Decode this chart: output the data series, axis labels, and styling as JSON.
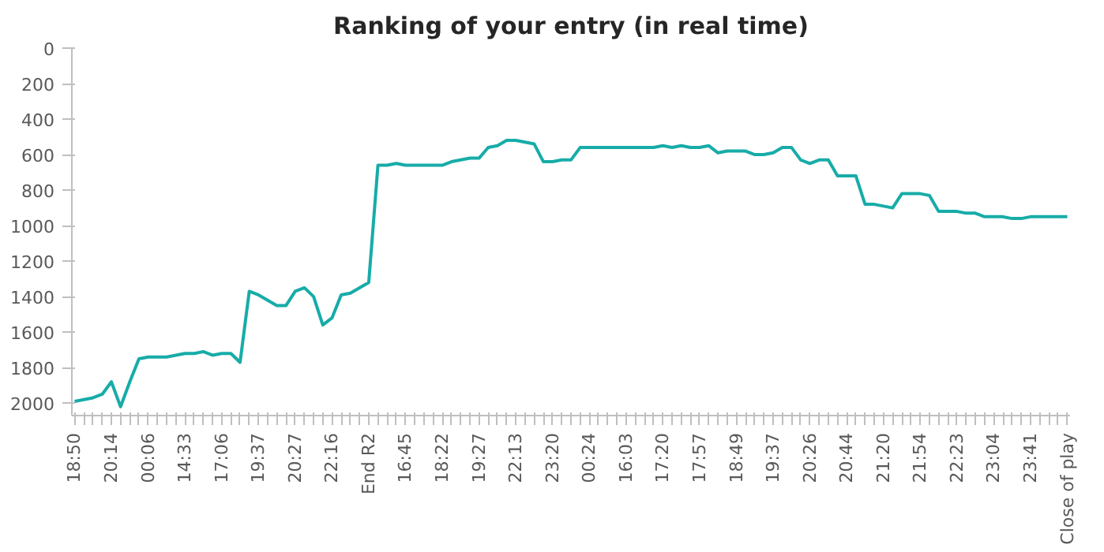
{
  "chart_data": {
    "type": "line",
    "title": "Ranking of your entry (in real time)",
    "categories": [
      "18:50",
      null,
      null,
      null,
      "20:14",
      null,
      null,
      null,
      "00:06",
      null,
      null,
      null,
      "14:33",
      null,
      null,
      null,
      "17:06",
      null,
      null,
      null,
      "19:37",
      null,
      null,
      null,
      "20:27",
      null,
      null,
      null,
      "22:16",
      null,
      null,
      null,
      "End R2",
      null,
      null,
      null,
      "16:45",
      null,
      null,
      null,
      "18:22",
      null,
      null,
      null,
      "19:27",
      null,
      null,
      null,
      "22:13",
      null,
      null,
      null,
      "23:20",
      null,
      null,
      null,
      "00:24",
      null,
      null,
      null,
      "16:03",
      null,
      null,
      null,
      "17:20",
      null,
      null,
      null,
      "17:57",
      null,
      null,
      null,
      "18:49",
      null,
      null,
      null,
      "19:37",
      null,
      null,
      null,
      "20:26",
      null,
      null,
      null,
      "20:44",
      null,
      null,
      null,
      "21:20",
      null,
      null,
      null,
      "21:54",
      null,
      null,
      null,
      "22:23",
      null,
      null,
      null,
      "23:04",
      null,
      null,
      null,
      "23:41",
      null,
      null,
      null,
      "Close of play"
    ],
    "series": [
      {
        "color": "#17aca8",
        "values": [
          1990,
          1980,
          1970,
          1950,
          1880,
          2020,
          1880,
          1750,
          1740,
          1740,
          1740,
          1730,
          1720,
          1720,
          1710,
          1730,
          1720,
          1720,
          1770,
          1370,
          1390,
          1420,
          1450,
          1450,
          1370,
          1350,
          1400,
          1560,
          1520,
          1390,
          1380,
          1350,
          1320,
          660,
          660,
          650,
          660,
          660,
          660,
          660,
          660,
          640,
          630,
          620,
          620,
          560,
          550,
          520,
          520,
          530,
          540,
          640,
          640,
          630,
          630,
          560,
          560,
          560,
          560,
          560,
          560,
          560,
          560,
          560,
          550,
          560,
          550,
          560,
          560,
          550,
          590,
          580,
          580,
          580,
          600,
          600,
          590,
          560,
          560,
          630,
          650,
          630,
          630,
          720,
          720,
          720,
          880,
          880,
          890,
          900,
          820,
          820,
          820,
          830,
          920,
          920,
          920,
          930,
          930,
          950,
          950,
          950,
          960,
          960,
          950,
          950,
          950,
          950,
          950
        ]
      }
    ],
    "ylim": [
      2070,
      0
    ],
    "yticks": [
      0,
      200,
      400,
      600,
      800,
      1000,
      1200,
      1400,
      1600,
      1800,
      2000
    ],
    "grid": false,
    "marker": "none",
    "line_style": "solid"
  }
}
